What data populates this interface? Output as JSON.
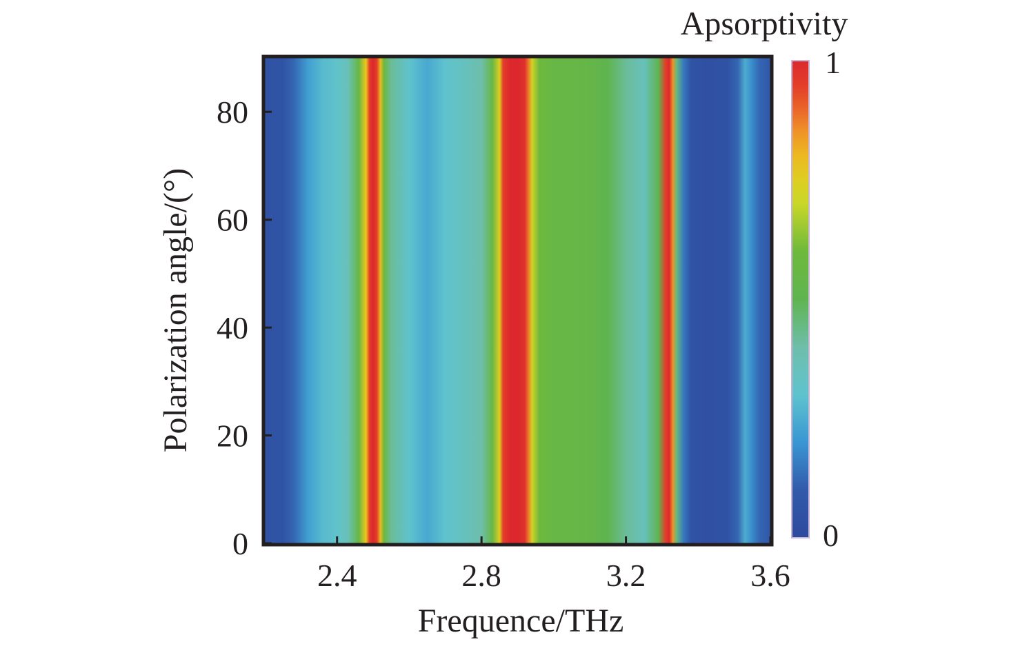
{
  "chart_data": {
    "type": "heatmap",
    "xlabel": "Frequence/THz",
    "ylabel": "Polarization angle/(°)",
    "xlim": [
      2.2,
      3.6
    ],
    "ylim": [
      0,
      90
    ],
    "x_ticks": [
      "2.4",
      "2.8",
      "3.2",
      "3.6"
    ],
    "y_ticks": [
      "0",
      "20",
      "40",
      "60",
      "80"
    ],
    "colorbar": {
      "title": "Apsorptivity",
      "max_label": "1",
      "min_label": "0",
      "range": [
        0,
        1
      ]
    },
    "absorption_profile": {
      "note_x_unit": "THz",
      "x": [
        2.2,
        2.25,
        2.28,
        2.32,
        2.36,
        2.4,
        2.43,
        2.46,
        2.48,
        2.49,
        2.5,
        2.51,
        2.52,
        2.53,
        2.55,
        2.6,
        2.65,
        2.7,
        2.75,
        2.8,
        2.83,
        2.85,
        2.86,
        2.88,
        2.9,
        2.92,
        2.93,
        2.94,
        2.96,
        3.0,
        3.05,
        3.1,
        3.15,
        3.2,
        3.25,
        3.29,
        3.31,
        3.32,
        3.33,
        3.34,
        3.36,
        3.38,
        3.42,
        3.48,
        3.51,
        3.53,
        3.55,
        3.57,
        3.6
      ],
      "values": [
        0.05,
        0.06,
        0.12,
        0.22,
        0.28,
        0.31,
        0.36,
        0.55,
        0.78,
        0.95,
        1.0,
        0.95,
        0.8,
        0.58,
        0.42,
        0.3,
        0.24,
        0.3,
        0.34,
        0.4,
        0.55,
        0.75,
        0.95,
        1.0,
        1.0,
        0.98,
        0.88,
        0.72,
        0.6,
        0.55,
        0.55,
        0.54,
        0.5,
        0.42,
        0.35,
        0.5,
        0.95,
        1.0,
        0.85,
        0.45,
        0.15,
        0.06,
        0.04,
        0.05,
        0.12,
        0.25,
        0.18,
        0.12,
        0.08
      ]
    }
  }
}
